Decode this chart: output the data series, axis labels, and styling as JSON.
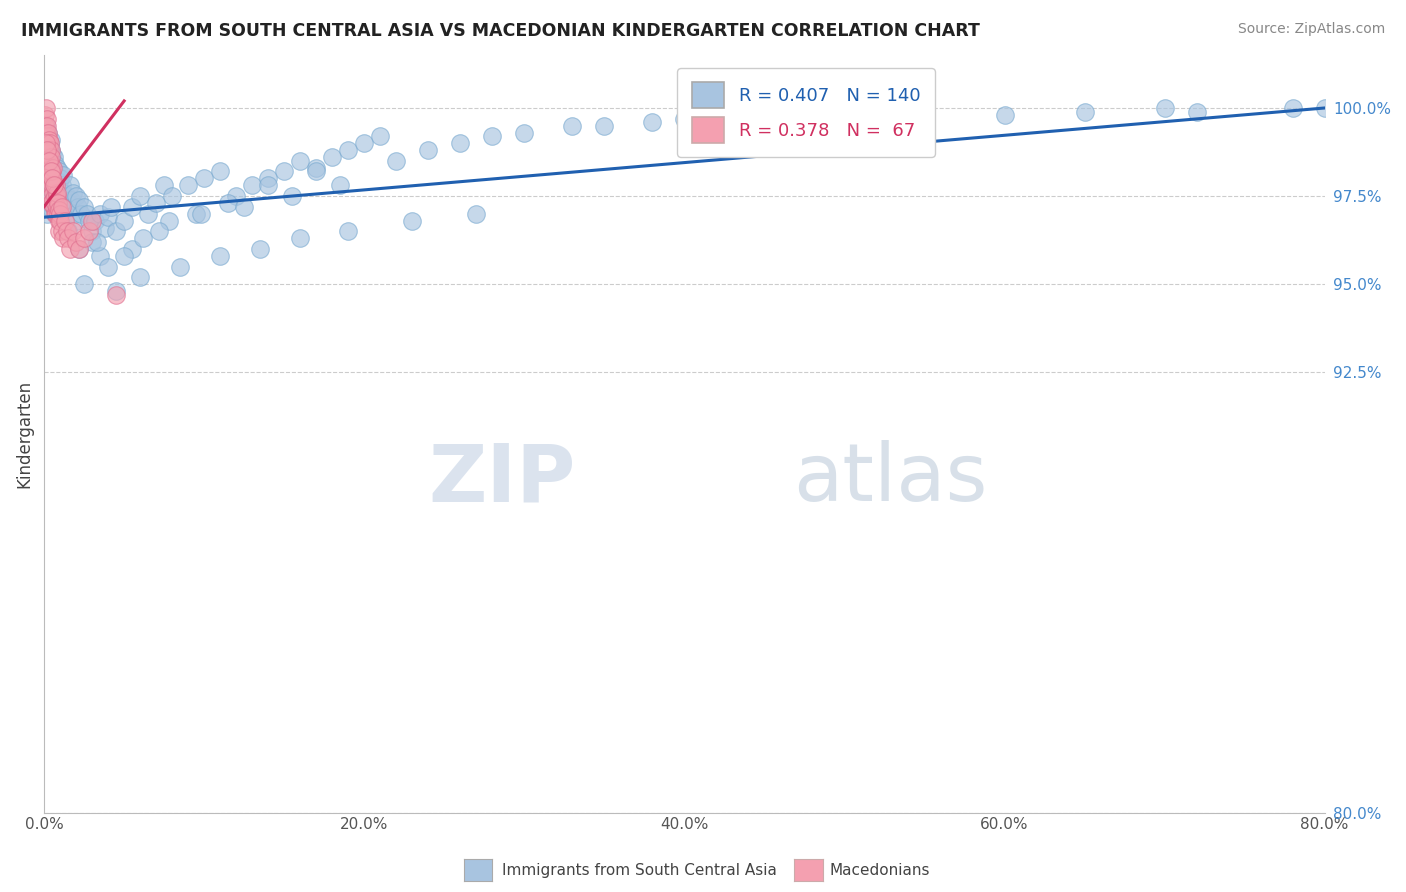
{
  "title": "IMMIGRANTS FROM SOUTH CENTRAL ASIA VS MACEDONIAN KINDERGARTEN CORRELATION CHART",
  "source": "Source: ZipAtlas.com",
  "ylabel": "Kindergarten",
  "x_min": 0.0,
  "x_max": 80.0,
  "y_min": 80.0,
  "y_max": 101.5,
  "y_ticks": [
    80.0,
    92.5,
    95.0,
    97.5,
    100.0
  ],
  "y_tick_labels": [
    "80.0%",
    "92.5%",
    "95.0%",
    "97.5%",
    "100.0%"
  ],
  "x_ticks": [
    0.0,
    20.0,
    40.0,
    60.0,
    80.0
  ],
  "x_tick_labels": [
    "0.0%",
    "20.0%",
    "40.0%",
    "60.0%",
    "80.0%"
  ],
  "blue_color": "#a8c4e0",
  "pink_color": "#f4a0b0",
  "blue_line_color": "#2060b0",
  "pink_line_color": "#d03060",
  "watermark_zip": "ZIP",
  "watermark_atlas": "atlas",
  "blue_scatter_x": [
    0.05,
    0.08,
    0.1,
    0.1,
    0.12,
    0.15,
    0.15,
    0.18,
    0.2,
    0.2,
    0.22,
    0.25,
    0.25,
    0.28,
    0.3,
    0.3,
    0.32,
    0.35,
    0.35,
    0.38,
    0.4,
    0.4,
    0.42,
    0.45,
    0.45,
    0.48,
    0.5,
    0.5,
    0.55,
    0.55,
    0.6,
    0.6,
    0.65,
    0.7,
    0.7,
    0.75,
    0.8,
    0.8,
    0.85,
    0.9,
    0.9,
    0.95,
    1.0,
    1.0,
    1.1,
    1.1,
    1.2,
    1.2,
    1.3,
    1.4,
    1.5,
    1.6,
    1.7,
    1.8,
    1.9,
    2.0,
    2.0,
    2.1,
    2.2,
    2.3,
    2.5,
    2.7,
    2.8,
    3.0,
    3.2,
    3.5,
    3.8,
    4.0,
    4.2,
    4.5,
    5.0,
    5.5,
    6.0,
    6.5,
    7.0,
    7.5,
    8.0,
    9.0,
    10.0,
    11.0,
    12.0,
    13.0,
    14.0,
    15.0,
    16.0,
    17.0,
    18.0,
    19.0,
    20.0,
    21.0,
    3.0,
    3.5,
    4.0,
    5.5,
    6.2,
    7.8,
    9.5,
    11.5,
    14.0,
    17.0,
    22.0,
    24.0,
    26.0,
    28.0,
    30.0,
    33.0,
    35.0,
    38.0,
    40.0,
    42.0,
    45.0,
    48.0,
    50.0,
    55.0,
    60.0,
    65.0,
    70.0,
    72.0,
    78.0,
    80.0,
    2.5,
    4.5,
    6.0,
    8.5,
    11.0,
    13.5,
    16.0,
    19.0,
    23.0,
    27.0,
    1.5,
    2.2,
    3.3,
    5.0,
    7.2,
    9.8,
    12.5,
    15.5,
    18.5
  ],
  "blue_scatter_y": [
    99.2,
    98.8,
    99.5,
    97.8,
    99.0,
    98.5,
    97.2,
    99.1,
    98.3,
    97.0,
    99.3,
    98.7,
    97.5,
    98.9,
    98.0,
    97.3,
    98.6,
    99.0,
    97.8,
    98.4,
    98.8,
    97.6,
    99.1,
    98.2,
    97.4,
    98.7,
    98.5,
    97.1,
    98.3,
    97.9,
    98.6,
    97.2,
    98.0,
    98.4,
    97.5,
    98.1,
    98.3,
    97.0,
    97.8,
    98.2,
    97.6,
    97.9,
    98.0,
    97.3,
    97.8,
    97.4,
    97.6,
    98.1,
    97.2,
    97.5,
    97.3,
    97.8,
    97.4,
    97.6,
    97.0,
    97.5,
    96.8,
    97.2,
    97.4,
    97.0,
    97.2,
    97.0,
    96.8,
    96.5,
    96.8,
    97.0,
    96.6,
    96.9,
    97.2,
    96.5,
    96.8,
    97.2,
    97.5,
    97.0,
    97.3,
    97.8,
    97.5,
    97.8,
    98.0,
    98.2,
    97.5,
    97.8,
    98.0,
    98.2,
    98.5,
    98.3,
    98.6,
    98.8,
    99.0,
    99.2,
    96.2,
    95.8,
    95.5,
    96.0,
    96.3,
    96.8,
    97.0,
    97.3,
    97.8,
    98.2,
    98.5,
    98.8,
    99.0,
    99.2,
    99.3,
    99.5,
    99.5,
    99.6,
    99.7,
    99.8,
    99.7,
    99.8,
    99.8,
    99.9,
    99.8,
    99.9,
    100.0,
    99.9,
    100.0,
    100.0,
    95.0,
    94.8,
    95.2,
    95.5,
    95.8,
    96.0,
    96.3,
    96.5,
    96.8,
    97.0,
    96.5,
    96.0,
    96.2,
    95.8,
    96.5,
    97.0,
    97.2,
    97.5,
    97.8
  ],
  "pink_scatter_x": [
    0.05,
    0.08,
    0.1,
    0.12,
    0.15,
    0.15,
    0.18,
    0.2,
    0.2,
    0.22,
    0.25,
    0.25,
    0.28,
    0.3,
    0.3,
    0.32,
    0.35,
    0.35,
    0.38,
    0.4,
    0.4,
    0.42,
    0.45,
    0.45,
    0.48,
    0.5,
    0.52,
    0.55,
    0.55,
    0.58,
    0.6,
    0.62,
    0.65,
    0.68,
    0.7,
    0.72,
    0.75,
    0.78,
    0.8,
    0.82,
    0.85,
    0.88,
    0.9,
    0.92,
    0.95,
    1.0,
    1.0,
    1.1,
    1.1,
    1.2,
    1.3,
    1.4,
    1.5,
    1.6,
    1.8,
    2.0,
    2.2,
    2.5,
    2.8,
    3.0,
    0.1,
    0.2,
    0.3,
    0.4,
    0.5,
    0.6,
    4.5
  ],
  "pink_scatter_y": [
    99.8,
    99.5,
    100.0,
    99.3,
    99.7,
    98.8,
    99.2,
    99.5,
    98.5,
    99.0,
    99.3,
    98.3,
    99.1,
    98.8,
    98.0,
    98.6,
    99.0,
    97.8,
    98.5,
    98.8,
    97.5,
    98.3,
    98.6,
    97.3,
    98.2,
    98.0,
    97.8,
    97.6,
    98.3,
    97.4,
    97.8,
    97.2,
    97.5,
    97.0,
    97.3,
    97.8,
    97.0,
    97.5,
    97.2,
    97.6,
    97.0,
    97.3,
    96.8,
    97.1,
    96.5,
    97.0,
    96.8,
    96.5,
    97.2,
    96.3,
    96.8,
    96.5,
    96.3,
    96.0,
    96.5,
    96.2,
    96.0,
    96.3,
    96.5,
    96.8,
    99.0,
    98.8,
    98.5,
    98.2,
    98.0,
    97.8,
    94.7
  ],
  "blue_trendline_x0": 0.0,
  "blue_trendline_x1": 80.0,
  "blue_trendline_y0": 96.9,
  "blue_trendline_y1": 100.0,
  "pink_trendline_x0": 0.0,
  "pink_trendline_x1": 5.0,
  "pink_trendline_y0": 97.2,
  "pink_trendline_y1": 100.2
}
